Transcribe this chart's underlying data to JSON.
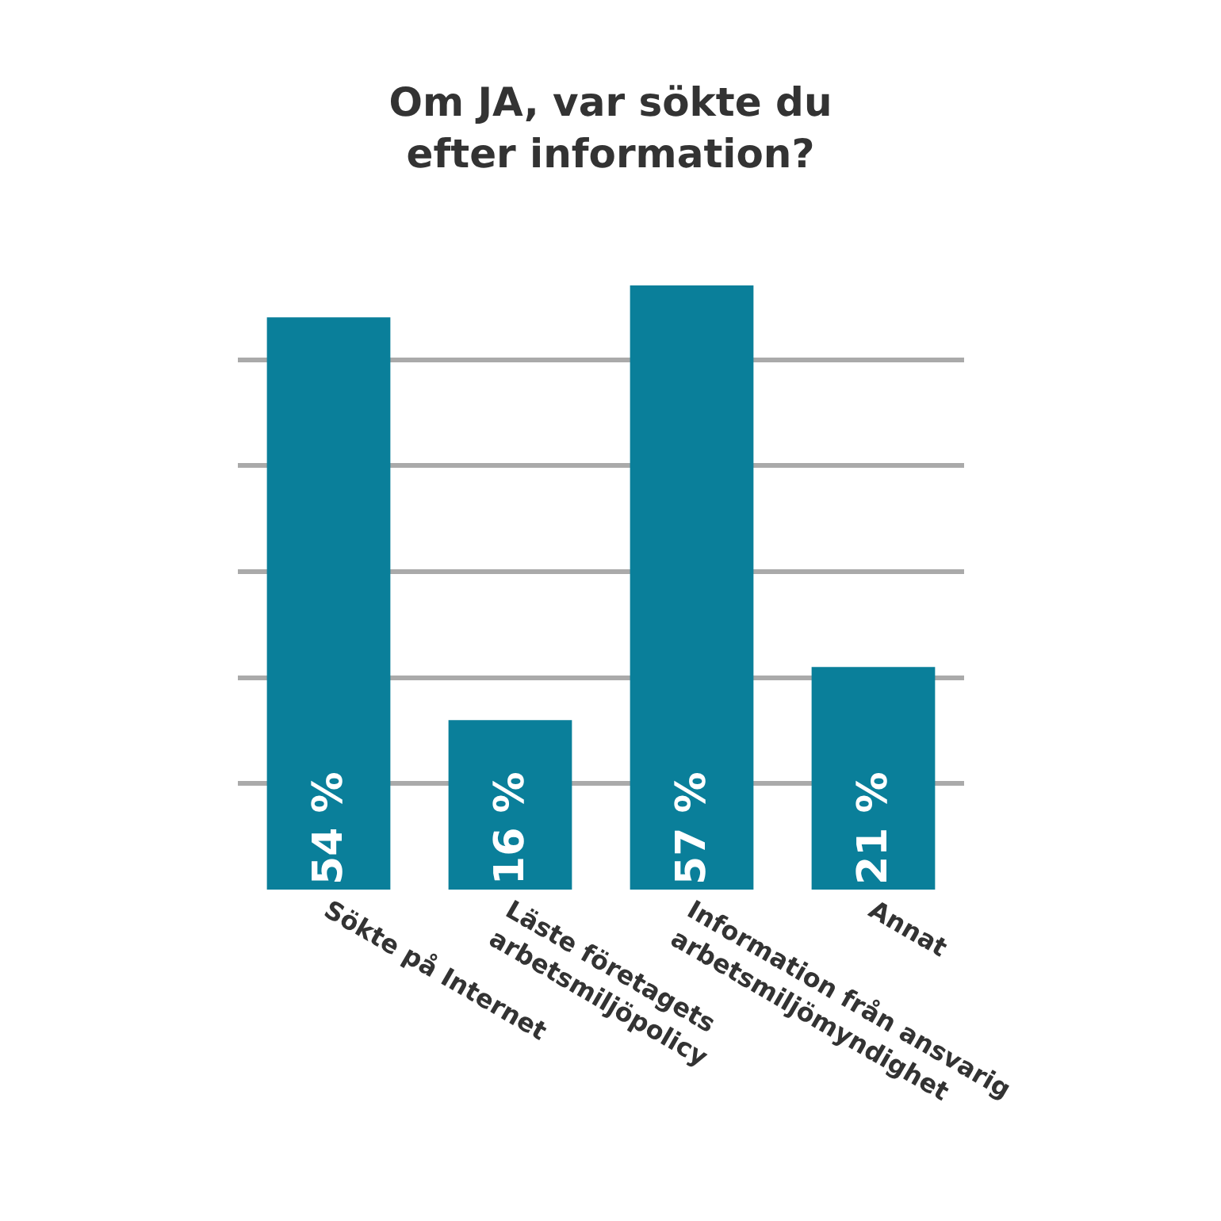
{
  "chart_data": {
    "type": "bar",
    "title": "Om JA, var sökte du\nefter information?",
    "categories": [
      "Sökte på Internet",
      "Läste företagets\narbetsmiljöpolicy",
      "Information från ansvarig\narbetsmiljömyndighet",
      "Annat"
    ],
    "values": [
      54,
      16,
      57,
      21
    ],
    "value_labels": [
      "54 %",
      "16 %",
      "57 %",
      "21 %"
    ],
    "color": "#0a7f9a",
    "grid": "y",
    "tick_labels": "x"
  }
}
